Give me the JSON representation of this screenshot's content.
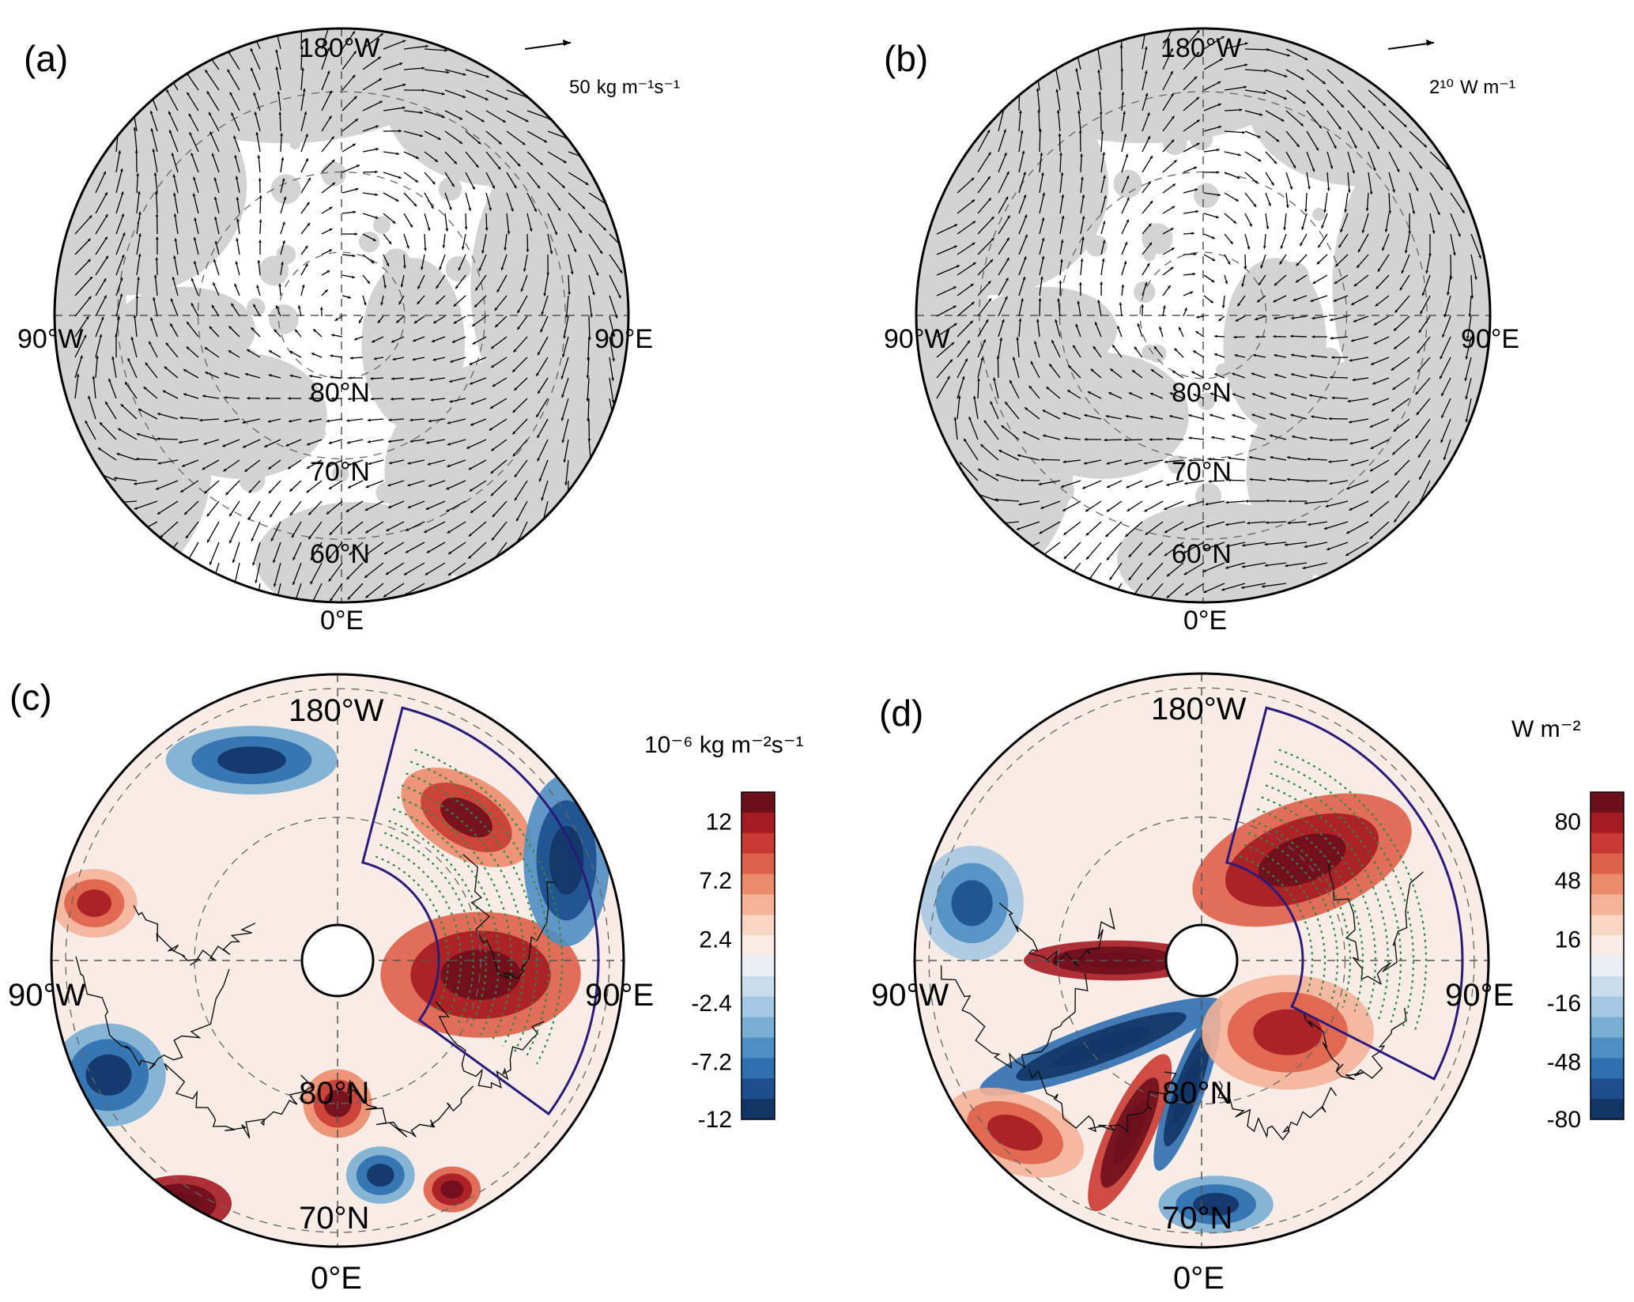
{
  "panels": {
    "a": {
      "label": "(a)",
      "lon_labels": {
        "top": "180°W",
        "left": "90°W",
        "right": "90°E",
        "bottom": "0°E"
      },
      "lat_labels": [
        "80°N",
        "70°N",
        "60°N"
      ],
      "reference_vector": {
        "value": "50",
        "units": "kg m⁻¹s⁻¹"
      },
      "land_color": "#d3d3d3",
      "vector_color": "#000000"
    },
    "b": {
      "label": "(b)",
      "lon_labels": {
        "top": "180°W",
        "left": "90°W",
        "right": "90°E",
        "bottom": "0°E"
      },
      "lat_labels": [
        "80°N",
        "70°N",
        "60°N"
      ],
      "reference_vector": {
        "value": "2¹⁰",
        "units": "W m⁻¹"
      },
      "land_color": "#d3d3d3",
      "vector_color": "#000000"
    },
    "c": {
      "label": "(c)",
      "lon_labels": {
        "top": "180°W",
        "left": "90°W",
        "right": "90°E",
        "bottom": "0°E"
      },
      "lat_labels": [
        "80°N",
        "70°N"
      ],
      "colorbar": {
        "title": "10⁻⁶ kg m⁻²s⁻¹",
        "ticks": [
          "12",
          "7.2",
          "2.4",
          "-2.4",
          "-7.2",
          "-12"
        ],
        "colors": [
          "#6d0e1d",
          "#a51b22",
          "#c93b32",
          "#dd6148",
          "#ec8b6c",
          "#f4b298",
          "#f9d5c4",
          "#f7ece6",
          "#e8eef4",
          "#c9dcec",
          "#a5c8e2",
          "#79aed3",
          "#4f8ec2",
          "#2d6faf",
          "#1c4f8c",
          "#123566"
        ]
      },
      "stipple_color": "#2e8b3e",
      "box_color": "#2a1b7a"
    },
    "d": {
      "label": "(d)",
      "lon_labels": {
        "top": "180°W",
        "left": "90°W",
        "right": "90°E",
        "bottom": "0°E"
      },
      "lat_labels": [
        "80°N",
        "70°N"
      ],
      "colorbar": {
        "title": "W m⁻²",
        "ticks": [
          "80",
          "48",
          "16",
          "-16",
          "-48",
          "-80"
        ],
        "colors": [
          "#6d0e1d",
          "#a51b22",
          "#c93b32",
          "#dd6148",
          "#ec8b6c",
          "#f4b298",
          "#f9d5c4",
          "#f7ece6",
          "#e8eef4",
          "#c9dcec",
          "#a5c8e2",
          "#79aed3",
          "#4f8ec2",
          "#2d6faf",
          "#1c4f8c",
          "#123566"
        ]
      },
      "stipple_color": "#2e8b3e",
      "box_color": "#2a1b7a"
    }
  }
}
